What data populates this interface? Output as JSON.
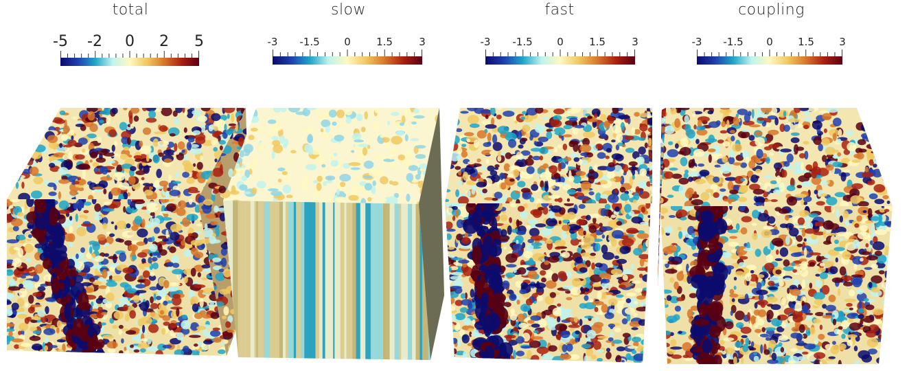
{
  "panels": [
    {
      "title": "total",
      "ticks": [
        "-5",
        "-2",
        "0",
        "2",
        "5"
      ],
      "cmin": -5,
      "cmax": 5,
      "noise_seed": 11,
      "style": "turbulent"
    },
    {
      "title": "slow",
      "ticks": [
        "-3",
        "-1.5",
        "0",
        "1.5",
        "3"
      ],
      "cmin": -3,
      "cmax": 3,
      "noise_seed": 23,
      "style": "striped"
    },
    {
      "title": "fast",
      "ticks": [
        "-3",
        "-1.5",
        "0",
        "1.5",
        "3"
      ],
      "cmin": -3,
      "cmax": 3,
      "noise_seed": 37,
      "style": "turbulent"
    },
    {
      "title": "coupling",
      "ticks": [
        "-3",
        "-1.5",
        "0",
        "1.5",
        "3"
      ],
      "cmin": -3,
      "cmax": 3,
      "noise_seed": 51,
      "style": "turbulent"
    }
  ],
  "colormap": [
    "#0b0b6e",
    "#1f3fae",
    "#1fa5c8",
    "#bff3ee",
    "#fff8c0",
    "#f0c860",
    "#d8762a",
    "#a82010",
    "#5a0012"
  ]
}
